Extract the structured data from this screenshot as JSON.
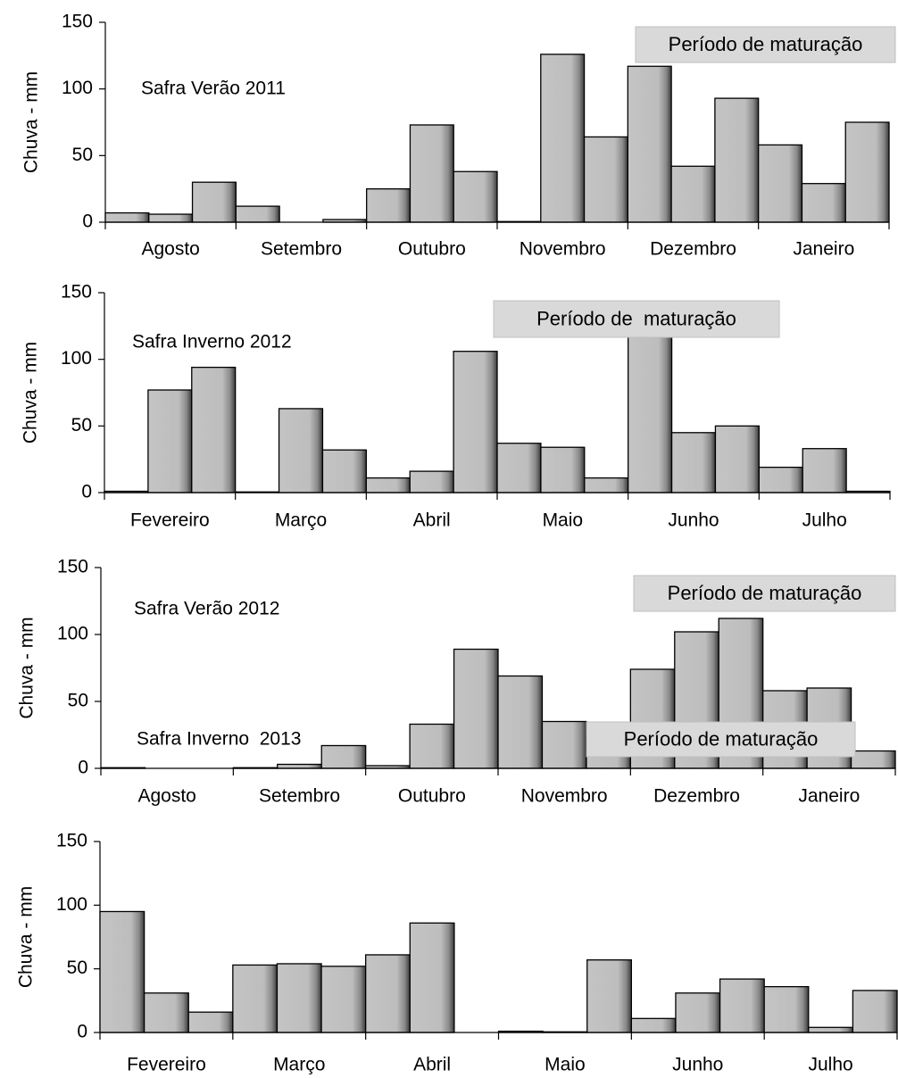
{
  "chart_data": [
    {
      "type": "bar",
      "ylabel": "Chuva - mm",
      "annotation": "Safra Verão 2011",
      "period_label": "Período de maturação",
      "categories": [
        null,
        "Agosto",
        null,
        null,
        "Setembro",
        null,
        null,
        "Outubro",
        null,
        null,
        "Novembro",
        null,
        null,
        "Dezembro",
        null,
        null,
        "Janeiro",
        null
      ],
      "values": [
        7,
        6,
        30,
        12,
        0,
        2,
        25,
        73,
        38,
        0.5,
        126,
        64,
        117,
        42,
        93,
        58,
        29,
        75
      ],
      "ylim": [
        0,
        150
      ],
      "yticks": [
        0,
        50,
        100,
        150
      ]
    },
    {
      "type": "bar",
      "ylabel": "Chuva - mm",
      "annotation": "Safra Inverno 2012",
      "period_label": "Período de  maturação",
      "categories": [
        null,
        "Fevereiro",
        null,
        null,
        "Março",
        null,
        null,
        "Abril",
        null,
        null,
        "Maio",
        null,
        null,
        "Junho",
        null,
        null,
        "Julho",
        null
      ],
      "values": [
        1,
        77,
        94,
        0.5,
        63,
        32,
        11,
        16,
        106,
        37,
        34,
        11,
        130,
        45,
        50,
        19,
        33,
        1
      ],
      "ylim": [
        0,
        150
      ],
      "yticks": [
        0,
        50,
        100,
        150
      ]
    },
    {
      "type": "bar",
      "ylabel": "Chuva - mm",
      "annotation": "Safra Verão 2012",
      "period_label": "Período de maturação",
      "categories": [
        null,
        "Agosto",
        null,
        null,
        "Setembro",
        null,
        null,
        "Outubro",
        null,
        null,
        "Novembro",
        null,
        null,
        "Dezembro",
        null,
        null,
        "Janeiro",
        null
      ],
      "values": [
        0.5,
        0,
        0,
        0.5,
        3,
        17,
        2,
        33,
        89,
        69,
        35,
        24,
        74,
        102,
        112,
        58,
        60,
        13
      ],
      "ylim": [
        0,
        150
      ],
      "yticks": [
        0,
        50,
        100,
        150
      ]
    },
    {
      "type": "bar",
      "ylabel": "Chuva - mm",
      "annotation": "Safra Inverno  2013",
      "period_label": "Período de maturação",
      "categories": [
        null,
        "Fevereiro",
        null,
        null,
        "Março",
        null,
        null,
        "Abril",
        null,
        null,
        "Maio",
        null,
        null,
        "Junho",
        null,
        null,
        "Julho",
        null
      ],
      "values": [
        95,
        31,
        16,
        53,
        54,
        52,
        61,
        86,
        0,
        1,
        0.5,
        57,
        11,
        31,
        42,
        36,
        4,
        33
      ],
      "ylim": [
        0,
        150
      ],
      "yticks": [
        0,
        50,
        100,
        150
      ]
    }
  ]
}
